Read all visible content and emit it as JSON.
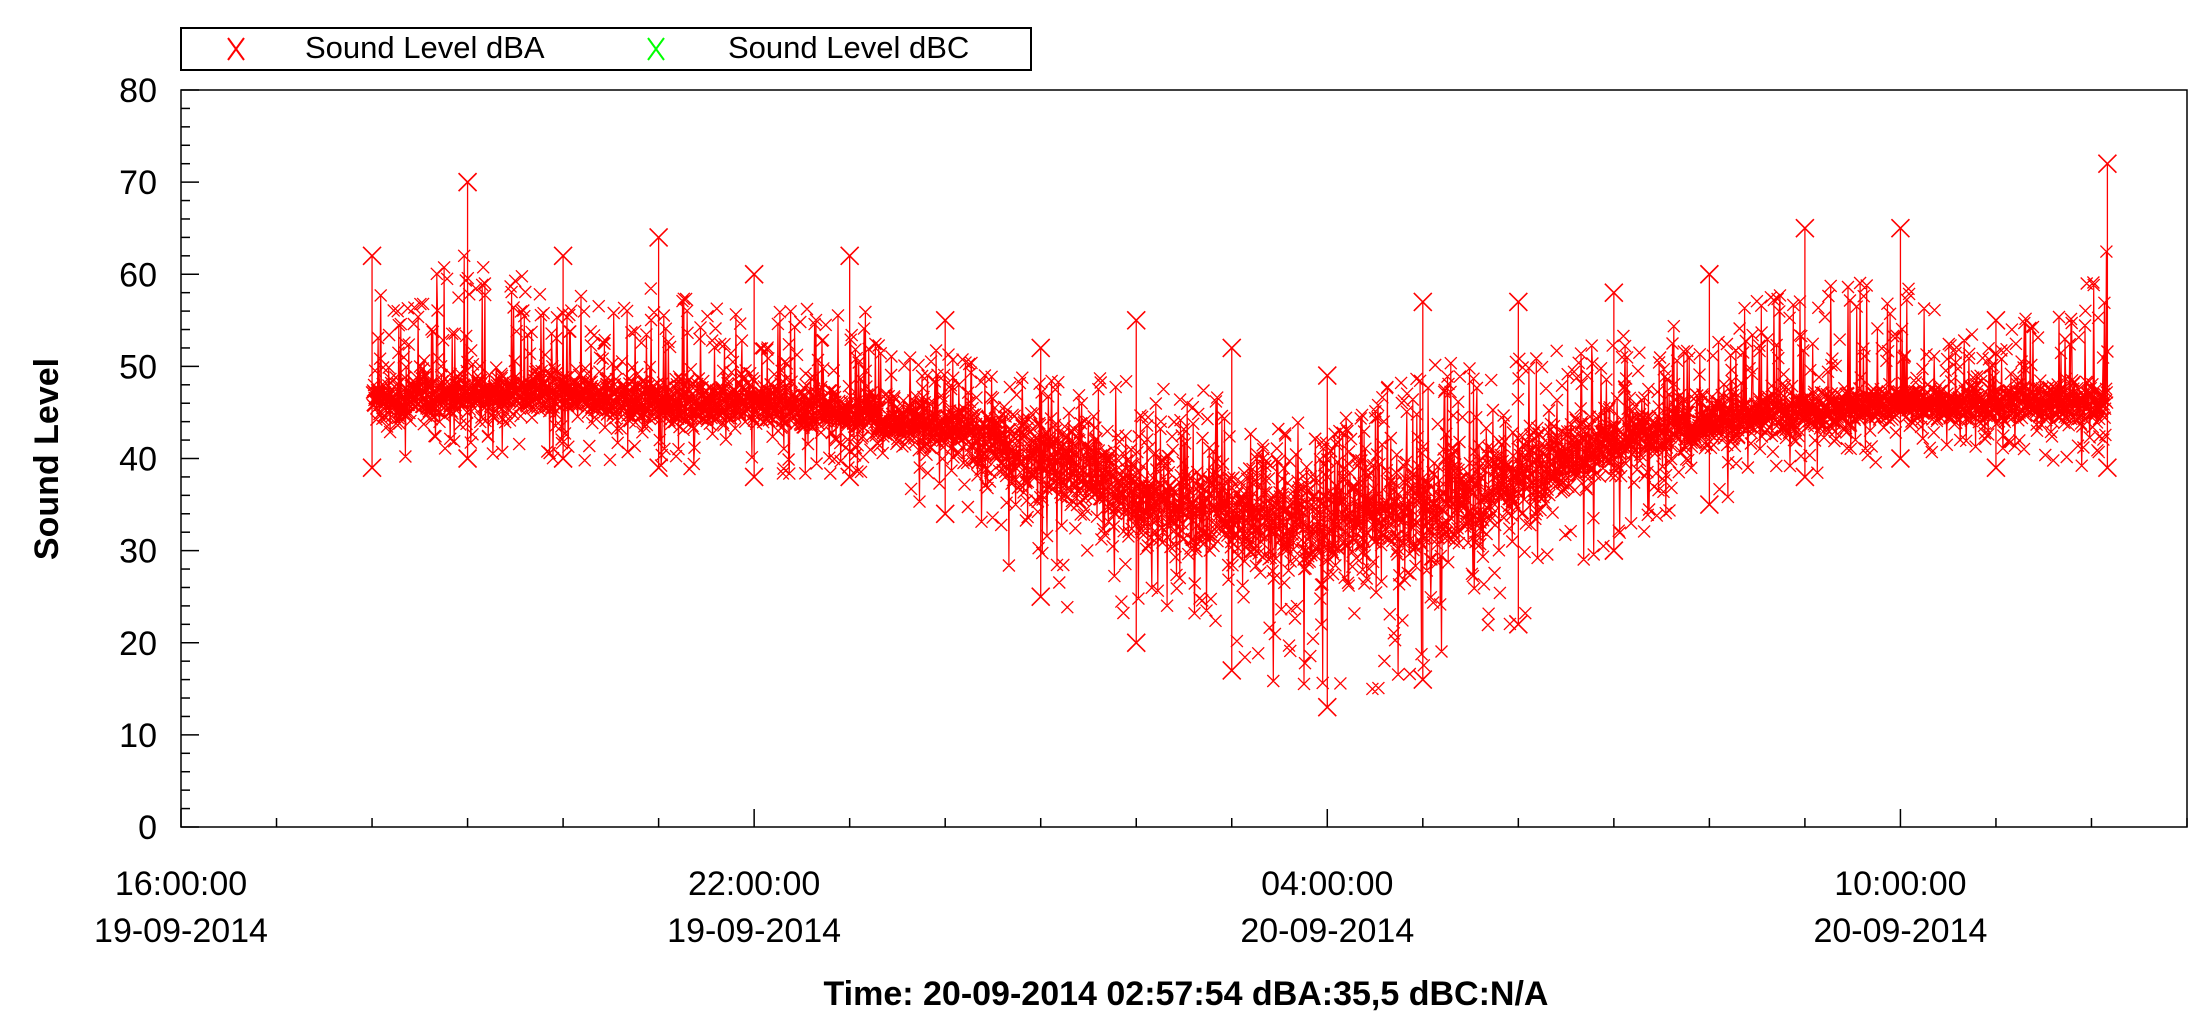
{
  "chart_data": {
    "type": "scatter",
    "title": "",
    "ylabel": "Sound Level",
    "xlabel": "Time: 20-09-2014 02:57:54 dBA:35,5 dBC:N/A",
    "ylim": [
      0,
      80
    ],
    "y_ticks": [
      0,
      10,
      20,
      30,
      40,
      50,
      60,
      70,
      80
    ],
    "xlim": [
      "19-09-2014 16:00:00",
      "20-09-2014 13:00:00"
    ],
    "x_tick_labels": [
      {
        "time": "16:00:00",
        "date": "19-09-2014"
      },
      {
        "time": "22:00:00",
        "date": "19-09-2014"
      },
      {
        "time": "04:00:00",
        "date": "20-09-2014"
      },
      {
        "time": "10:00:00",
        "date": "20-09-2014"
      }
    ],
    "grid": false,
    "legend_position": "top-left",
    "series": [
      {
        "name": "Sound Level dBA",
        "color": "#ff0000",
        "marker": "x",
        "x": [
          "19-09-2014 18:00",
          "19-09-2014 19:00",
          "19-09-2014 20:00",
          "19-09-2014 21:00",
          "19-09-2014 22:00",
          "19-09-2014 23:00",
          "20-09-2014 00:00",
          "20-09-2014 01:00",
          "20-09-2014 02:00",
          "20-09-2014 03:00",
          "20-09-2014 04:00",
          "20-09-2014 05:00",
          "20-09-2014 06:00",
          "20-09-2014 07:00",
          "20-09-2014 08:00",
          "20-09-2014 09:00",
          "20-09-2014 10:00",
          "20-09-2014 11:00",
          "20-09-2014 12:10"
        ],
        "mean": [
          46,
          47,
          47,
          46,
          46,
          45,
          43,
          40,
          36,
          34,
          33,
          34,
          38,
          42,
          44,
          45,
          46,
          46,
          46
        ],
        "min": [
          39,
          40,
          40,
          39,
          38,
          38,
          34,
          25,
          20,
          17,
          13,
          16,
          22,
          30,
          35,
          38,
          40,
          39,
          39
        ],
        "max": [
          62,
          70,
          62,
          64,
          60,
          62,
          55,
          52,
          55,
          52,
          49,
          57,
          57,
          58,
          60,
          65,
          65,
          55,
          72
        ]
      },
      {
        "name": "Sound Level dBC",
        "color": "#00ff00",
        "marker": "x",
        "x": [],
        "mean": [],
        "min": [],
        "max": []
      }
    ]
  }
}
